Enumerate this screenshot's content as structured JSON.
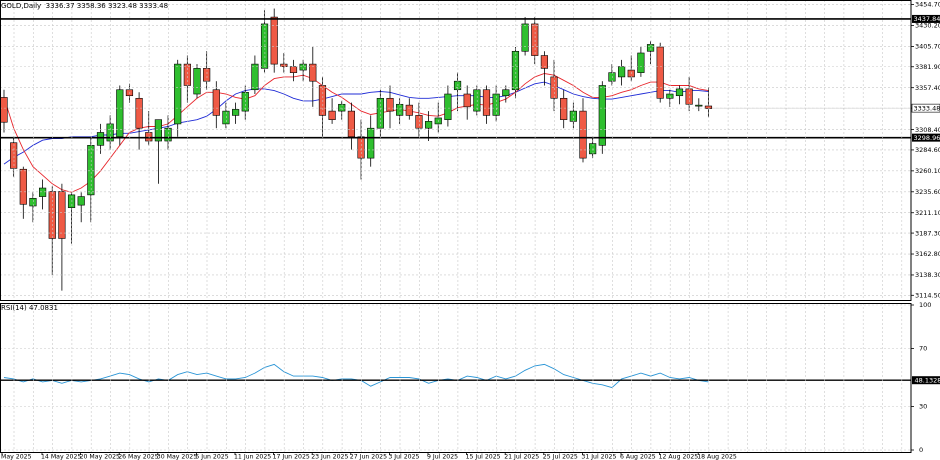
{
  "chart_data": [
    {
      "type": "candlestick",
      "title": "GOLD,Daily",
      "ohlc_header": "3336.37 3358.36 3323.48 3333.48",
      "y_ticks": [
        "3454.70",
        "3430.20",
        "3405.70",
        "3381.90",
        "3357.40",
        "3333.48",
        "3308.40",
        "3284.60",
        "3260.10",
        "3235.60",
        "3211.10",
        "3187.30",
        "3162.80",
        "3138.30",
        "3114.50"
      ],
      "ylim": [
        3109,
        3460
      ],
      "hlines": [
        {
          "value": 3437.84,
          "label": "3437.84"
        },
        {
          "value": 3298.96,
          "label": "3298.96"
        }
      ],
      "price_label": "3333.48",
      "x_tick_labels": [
        "May 2025",
        "14 May 2025",
        "20 May 2025",
        "26 May 2025",
        "30 May 2025",
        "5 Jun 2025",
        "11 Jun 2025",
        "17 Jun 2025",
        "23 Jun 2025",
        "27 Jun 2025",
        "3 Jul 2025",
        "9 Jul 2025",
        "15 Jul 2025",
        "21 Jul 2025",
        "25 Jul 2025",
        "31 Jul 2025",
        "6 Aug 2025",
        "12 Aug 2025",
        "18 Aug 2025"
      ],
      "candles": [
        [
          3346,
          3355,
          3305,
          3317
        ],
        [
          3293,
          3300,
          3253,
          3263
        ],
        [
          3262,
          3265,
          3204,
          3221
        ],
        [
          3219,
          3235,
          3200,
          3228
        ],
        [
          3230,
          3250,
          3215,
          3240
        ],
        [
          3236,
          3242,
          3138,
          3181
        ],
        [
          3236,
          3245,
          3120,
          3181
        ],
        [
          3217,
          3235,
          3175,
          3232
        ],
        [
          3220,
          3235,
          3200,
          3230
        ],
        [
          3232,
          3300,
          3200,
          3290
        ],
        [
          3290,
          3315,
          3280,
          3305
        ],
        [
          3295,
          3325,
          3285,
          3315
        ],
        [
          3300,
          3360,
          3290,
          3355
        ],
        [
          3355,
          3362,
          3340,
          3348
        ],
        [
          3345,
          3352,
          3285,
          3310
        ],
        [
          3305,
          3330,
          3290,
          3295
        ],
        [
          3295,
          3320,
          3245,
          3320
        ],
        [
          3295,
          3325,
          3285,
          3310
        ],
        [
          3315,
          3390,
          3300,
          3385
        ],
        [
          3385,
          3395,
          3340,
          3360
        ],
        [
          3350,
          3385,
          3345,
          3380
        ],
        [
          3380,
          3400,
          3355,
          3365
        ],
        [
          3355,
          3365,
          3310,
          3325
        ],
        [
          3315,
          3340,
          3310,
          3330
        ],
        [
          3325,
          3340,
          3315,
          3332
        ],
        [
          3330,
          3360,
          3320,
          3352
        ],
        [
          3355,
          3395,
          3350,
          3385
        ],
        [
          3380,
          3448,
          3375,
          3432
        ],
        [
          3440,
          3450,
          3375,
          3385
        ],
        [
          3385,
          3398,
          3375,
          3382
        ],
        [
          3382,
          3390,
          3365,
          3375
        ],
        [
          3378,
          3390,
          3365,
          3385
        ],
        [
          3385,
          3405,
          3335,
          3365
        ],
        [
          3360,
          3370,
          3300,
          3325
        ],
        [
          3330,
          3345,
          3315,
          3320
        ],
        [
          3330,
          3342,
          3320,
          3338
        ],
        [
          3330,
          3340,
          3285,
          3300
        ],
        [
          3300,
          3320,
          3250,
          3275
        ],
        [
          3275,
          3325,
          3265,
          3310
        ],
        [
          3310,
          3355,
          3300,
          3345
        ],
        [
          3345,
          3360,
          3310,
          3330
        ],
        [
          3325,
          3345,
          3315,
          3338
        ],
        [
          3337,
          3345,
          3320,
          3325
        ],
        [
          3325,
          3340,
          3300,
          3310
        ],
        [
          3310,
          3330,
          3295,
          3318
        ],
        [
          3315,
          3340,
          3305,
          3322
        ],
        [
          3320,
          3360,
          3312,
          3350
        ],
        [
          3355,
          3375,
          3330,
          3365
        ],
        [
          3350,
          3360,
          3320,
          3335
        ],
        [
          3330,
          3360,
          3325,
          3355
        ],
        [
          3355,
          3360,
          3315,
          3325
        ],
        [
          3325,
          3360,
          3318,
          3350
        ],
        [
          3348,
          3360,
          3340,
          3355
        ],
        [
          3355,
          3405,
          3345,
          3400
        ],
        [
          3400,
          3440,
          3395,
          3432
        ],
        [
          3432,
          3440,
          3385,
          3395
        ],
        [
          3395,
          3400,
          3360,
          3380
        ],
        [
          3370,
          3390,
          3330,
          3345
        ],
        [
          3345,
          3355,
          3310,
          3320
        ],
        [
          3318,
          3340,
          3310,
          3330
        ],
        [
          3330,
          3345,
          3270,
          3275
        ],
        [
          3280,
          3300,
          3275,
          3292
        ],
        [
          3290,
          3365,
          3280,
          3360
        ],
        [
          3365,
          3385,
          3360,
          3375
        ],
        [
          3370,
          3390,
          3360,
          3382
        ],
        [
          3378,
          3395,
          3365,
          3370
        ],
        [
          3375,
          3405,
          3370,
          3398
        ],
        [
          3400,
          3412,
          3385,
          3408
        ],
        [
          3405,
          3410,
          3340,
          3345
        ],
        [
          3345,
          3355,
          3335,
          3350
        ],
        [
          3348,
          3360,
          3338,
          3356
        ],
        [
          3356,
          3370,
          3330,
          3338
        ],
        [
          3336,
          3345,
          3330,
          3337
        ],
        [
          3336,
          3358,
          3323,
          3333
        ]
      ],
      "ma_fast": [
        3346,
        3310,
        3285,
        3265,
        3255,
        3245,
        3238,
        3235,
        3240,
        3248,
        3260,
        3275,
        3290,
        3305,
        3310,
        3312,
        3312,
        3315,
        3325,
        3335,
        3345,
        3352,
        3352,
        3350,
        3346,
        3344,
        3348,
        3360,
        3368,
        3370,
        3370,
        3372,
        3368,
        3360,
        3352,
        3346,
        3338,
        3330,
        3326,
        3328,
        3330,
        3332,
        3330,
        3328,
        3325,
        3324,
        3328,
        3334,
        3336,
        3338,
        3337,
        3340,
        3344,
        3352,
        3362,
        3370,
        3374,
        3372,
        3366,
        3360,
        3352,
        3346,
        3346,
        3348,
        3352,
        3355,
        3360,
        3364,
        3364,
        3360,
        3360,
        3360,
        3356,
        3354
      ],
      "ma_slow": [
        3268,
        3276,
        3282,
        3290,
        3296,
        3298,
        3298,
        3300,
        3300,
        3300,
        3302,
        3302,
        3304,
        3304,
        3306,
        3308,
        3310,
        3312,
        3316,
        3318,
        3320,
        3324,
        3332,
        3342,
        3350,
        3354,
        3356,
        3356,
        3354,
        3350,
        3345,
        3342,
        3342,
        3344,
        3347,
        3350,
        3350,
        3350,
        3352,
        3353,
        3352,
        3349,
        3346,
        3345,
        3345,
        3346,
        3347,
        3348,
        3348,
        3348,
        3346,
        3346,
        3348,
        3352,
        3357,
        3362,
        3364,
        3360,
        3355,
        3350,
        3347,
        3345,
        3344,
        3344,
        3346,
        3348,
        3350,
        3352,
        3354,
        3354,
        3352,
        3354,
        3354,
        3353
      ]
    },
    {
      "type": "line",
      "title": "RSI(14) 47.0831",
      "y_ticks": [
        "100",
        "70",
        "30",
        "0"
      ],
      "ylim": [
        0,
        100
      ],
      "hline": {
        "value": 48.1328,
        "label": "48.1328"
      },
      "values": [
        50,
        49,
        47,
        49,
        47,
        48,
        46,
        48,
        47,
        48,
        49,
        51,
        53,
        52,
        49,
        47,
        49,
        48,
        52,
        54,
        52,
        53,
        51,
        49,
        49,
        50,
        53,
        57,
        59,
        54,
        51,
        51,
        51,
        50,
        48,
        49,
        49,
        48,
        44,
        47,
        50,
        50,
        50,
        49,
        46,
        48,
        49,
        48,
        51,
        50,
        48,
        51,
        49,
        51,
        55,
        58,
        59,
        56,
        52,
        50,
        48,
        46,
        45,
        43,
        49,
        51,
        53,
        51,
        53,
        50,
        49,
        50,
        48,
        47
      ]
    }
  ]
}
